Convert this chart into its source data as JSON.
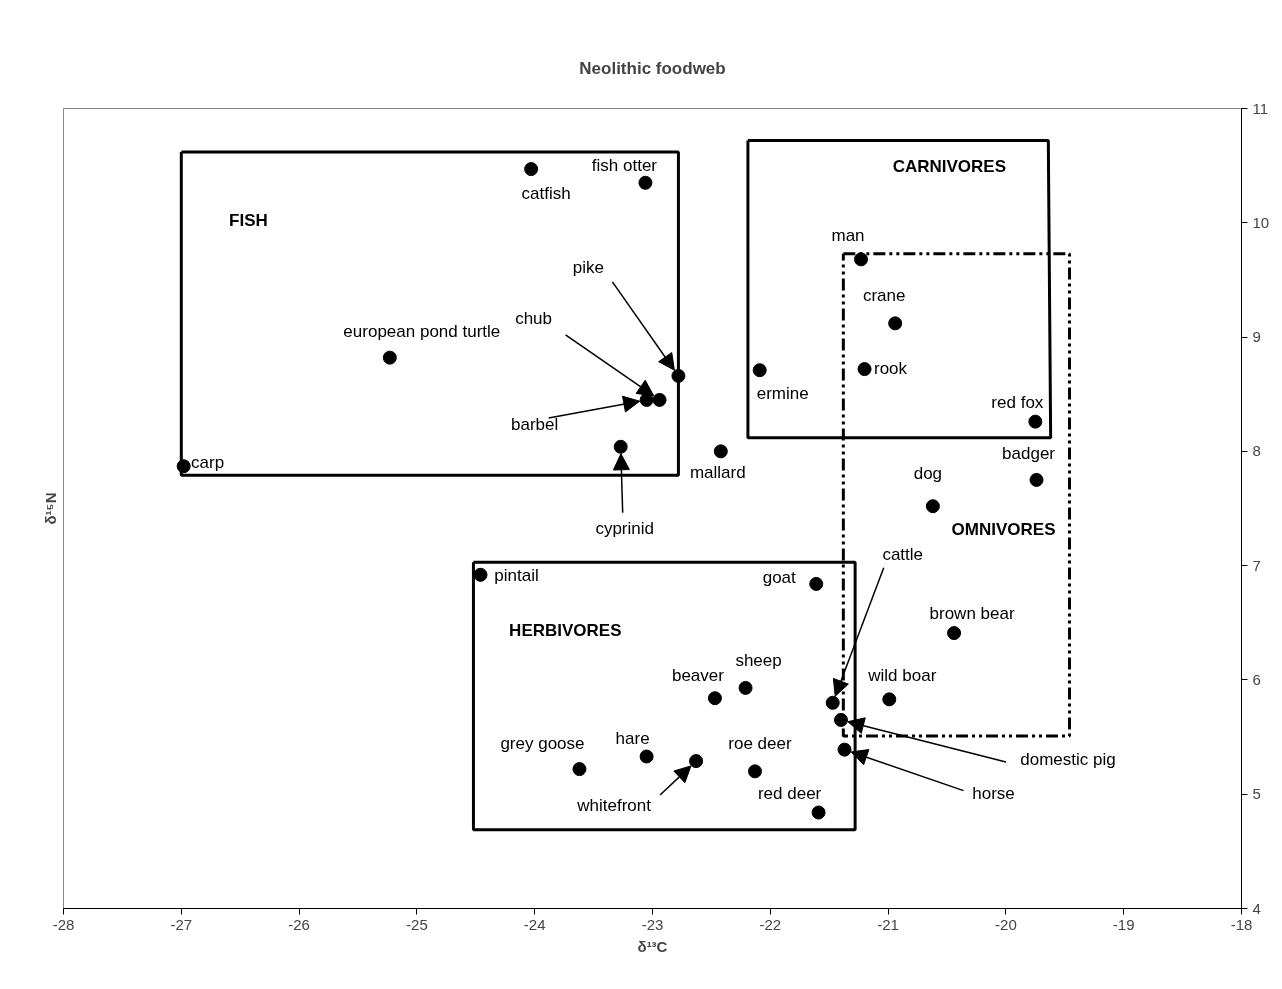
{
  "chart_data": {
    "type": "scatter",
    "title": "Neolithic foodweb",
    "xlabel": "δ¹³C",
    "ylabel": "δ¹⁵N",
    "x": [
      -24.03,
      -23.06,
      -25.23,
      -22.78,
      -22.94,
      -23.05,
      -23.27,
      -26.98,
      -22.42,
      -22.09,
      -21.23,
      -20.94,
      -21.2,
      -19.75,
      -19.74,
      -20.62,
      -24.46,
      -21.61,
      -20.44,
      -22.21,
      -22.47,
      -20.99,
      -21.47,
      -21.4,
      -21.37,
      -23.62,
      -23.05,
      -22.63,
      -22.13,
      -21.59
    ],
    "values": [
      10.47,
      10.35,
      8.82,
      8.66,
      8.45,
      8.45,
      8.04,
      7.87,
      8.0,
      8.71,
      9.68,
      9.12,
      8.72,
      8.26,
      7.75,
      7.52,
      6.92,
      6.84,
      6.41,
      5.93,
      5.84,
      5.83,
      5.8,
      5.65,
      5.39,
      5.22,
      5.33,
      5.29,
      5.2,
      4.84
    ],
    "color": "#000000",
    "marker": "circle",
    "grid": false,
    "legend": false,
    "xlim": [
      -28,
      -18
    ],
    "ylim": [
      4,
      11
    ],
    "xticks": [
      -28,
      -27,
      -26,
      -25,
      -24,
      -23,
      -22,
      -21,
      -20,
      -19,
      -18
    ],
    "yticks": [
      4,
      5,
      6,
      7,
      8,
      9,
      10,
      11
    ],
    "annotations": [
      {
        "text": "catfish",
        "x": -24.03,
        "y": 10.47
      },
      {
        "text": "fish otter",
        "x": -23.06,
        "y": 10.35
      },
      {
        "text": "european pond turtle",
        "x": -25.23,
        "y": 8.82
      },
      {
        "text": "pike",
        "x": -22.78,
        "y": 8.66
      },
      {
        "text": "chub",
        "x": -22.94,
        "y": 8.45
      },
      {
        "text": "barbel",
        "x": -23.05,
        "y": 8.45
      },
      {
        "text": "cyprinid",
        "x": -23.27,
        "y": 8.04
      },
      {
        "text": "carp",
        "x": -26.98,
        "y": 7.87
      },
      {
        "text": "mallard",
        "x": -22.42,
        "y": 8.0
      },
      {
        "text": "ermine",
        "x": -22.09,
        "y": 8.71
      },
      {
        "text": "man",
        "x": -21.23,
        "y": 9.68
      },
      {
        "text": "crane",
        "x": -20.94,
        "y": 9.12
      },
      {
        "text": "rook",
        "x": -21.2,
        "y": 8.72
      },
      {
        "text": "red fox",
        "x": -19.75,
        "y": 8.26
      },
      {
        "text": "badger",
        "x": -19.74,
        "y": 7.75
      },
      {
        "text": "dog",
        "x": -20.62,
        "y": 7.52
      },
      {
        "text": "pintail",
        "x": -24.46,
        "y": 6.92
      },
      {
        "text": "goat",
        "x": -21.61,
        "y": 6.84
      },
      {
        "text": "brown bear",
        "x": -20.44,
        "y": 6.41
      },
      {
        "text": "sheep",
        "x": -22.21,
        "y": 5.93
      },
      {
        "text": "beaver",
        "x": -22.47,
        "y": 5.84
      },
      {
        "text": "wild boar",
        "x": -20.99,
        "y": 5.83
      },
      {
        "text": "cattle",
        "x": -21.47,
        "y": 5.8
      },
      {
        "text": "domestic pig",
        "x": -21.4,
        "y": 5.65
      },
      {
        "text": "horse",
        "x": -21.37,
        "y": 5.39
      },
      {
        "text": "grey goose",
        "x": -23.62,
        "y": 5.22
      },
      {
        "text": "hare",
        "x": -23.05,
        "y": 5.33
      },
      {
        "text": "whitefront",
        "x": -22.63,
        "y": 5.29
      },
      {
        "text": "roe deer",
        "x": -22.13,
        "y": 5.2
      },
      {
        "text": "red deer",
        "x": -21.59,
        "y": 4.84
      },
      "FISH",
      "CARNIVORES",
      "OMNIVORES",
      "HERBIVORES"
    ]
  }
}
